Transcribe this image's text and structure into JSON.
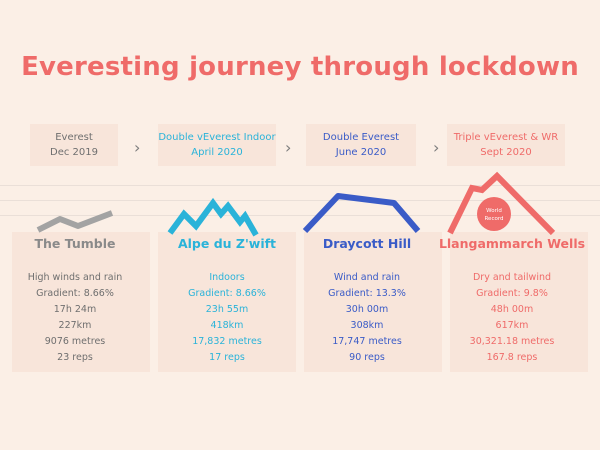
{
  "title": "Everesting journey through lockdown",
  "phases": [
    {
      "line1": "Everest",
      "line2": "Dec 2019",
      "color": "#8a8a8a"
    },
    {
      "line1": "Double vEverest Indoor",
      "line2": "April 2020",
      "color": "#2ab3d9"
    },
    {
      "line1": "Double Everest",
      "line2": "June 2020",
      "color": "#3a5bc7"
    },
    {
      "line1": "Triple vEverest & WR",
      "line2": "Sept 2020",
      "color": "#ef6b69"
    }
  ],
  "routes": [
    {
      "name": "The Tumble",
      "color": "#8a8a8a",
      "stats": [
        "High winds and rain",
        "Gradient: 8.66%",
        "17h 24m",
        "227km",
        "9076 metres",
        "23 reps"
      ]
    },
    {
      "name": "Alpe du Z'wift",
      "color": "#2ab3d9",
      "stats": [
        "Indoors",
        "Gradient: 8.66%",
        "23h 55m",
        "418km",
        "17,832 metres",
        "17 reps"
      ]
    },
    {
      "name": "Draycott Hill",
      "color": "#3a5bc7",
      "stats": [
        "Wind and rain",
        "Gradient: 13.3%",
        "30h 00m",
        "308km",
        "17,747 metres",
        "90 reps"
      ]
    },
    {
      "name": "Llangammarch Wells",
      "color": "#ef6b69",
      "stats": [
        "Dry and tailwind",
        "Gradient: 9.8%",
        "48h 00m",
        "617km",
        "30,321.18 metres",
        "167.8 reps"
      ]
    }
  ],
  "badge": {
    "line1": "World",
    "line2": "Record"
  }
}
